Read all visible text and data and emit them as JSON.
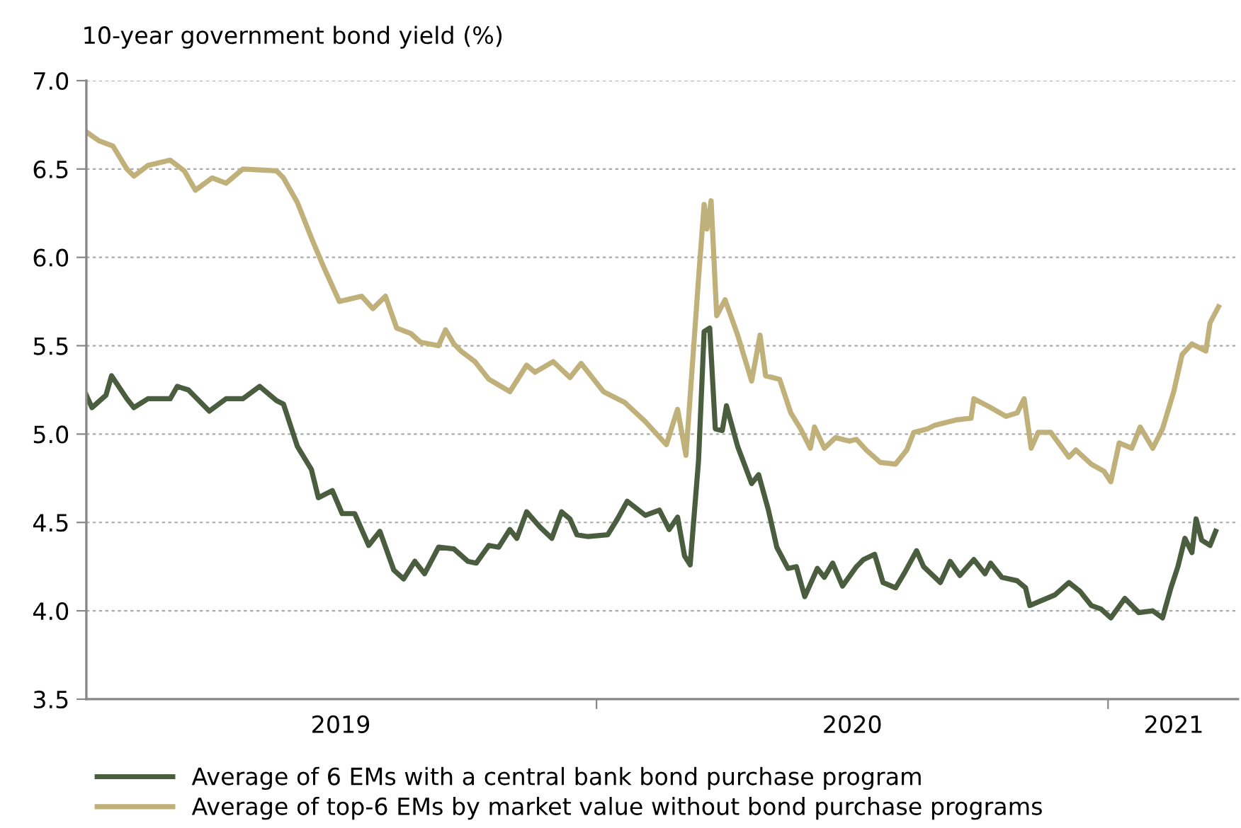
{
  "chart_data": {
    "type": "line",
    "ylabel": "10-year government bond yield (%)",
    "xlim": [
      "2019-01-01",
      "2021-04-04"
    ],
    "xticks": [
      {
        "value": "2019-07-02",
        "label": "2019"
      },
      {
        "value": "2020-01-01",
        "label": null
      },
      {
        "value": "2020-07-02",
        "label": "2020"
      },
      {
        "value": "2021-01-01",
        "label": null
      },
      {
        "value": "2021-02-17",
        "label": "2021"
      }
    ],
    "ylim": [
      3.5,
      7.0
    ],
    "yticks": [
      3.5,
      {
        "value": 4.0,
        "label": "4.0"
      },
      4.5,
      {
        "value": 5.0,
        "label": "5.0"
      },
      5.5,
      {
        "value": 6.0,
        "label": "6.0"
      },
      6.5,
      {
        "value": 7.0,
        "label": "7.0"
      }
    ],
    "grid": "y",
    "legend": "bottom",
    "line_style": "solid",
    "marker": "none",
    "series": [
      {
        "name": "Average of 6 EMs with a central bank bond purchase program",
        "color": "#4a5e3f",
        "x": [
          "2019-01-01",
          "2019-01-05",
          "2019-01-15",
          "2019-01-19",
          "2019-01-30",
          "2019-02-04",
          "2019-02-14",
          "2019-03-02",
          "2019-03-07",
          "2019-03-15",
          "2019-03-30",
          "2019-04-11",
          "2019-04-23",
          "2019-05-05",
          "2019-05-17",
          "2019-05-22",
          "2019-06-01",
          "2019-06-11",
          "2019-06-16",
          "2019-06-26",
          "2019-07-03",
          "2019-07-12",
          "2019-07-22",
          "2019-07-30",
          "2019-08-09",
          "2019-08-16",
          "2019-08-24",
          "2019-08-31",
          "2019-09-10",
          "2019-09-21",
          "2019-10-01",
          "2019-10-07",
          "2019-10-16",
          "2019-10-23",
          "2019-10-31",
          "2019-11-05",
          "2019-11-12",
          "2019-11-22",
          "2019-11-30",
          "2019-12-07",
          "2019-12-13",
          "2019-12-18",
          "2019-12-26",
          "2020-01-09",
          "2020-01-16",
          "2020-01-23",
          "2020-02-05",
          "2020-02-15",
          "2020-02-22",
          "2020-02-28",
          "2020-03-04",
          "2020-03-08",
          "2020-03-14",
          "2020-03-18",
          "2020-03-22",
          "2020-03-26",
          "2020-03-31",
          "2020-04-03",
          "2020-04-11",
          "2020-04-21",
          "2020-04-26",
          "2020-05-03",
          "2020-05-09",
          "2020-05-17",
          "2020-05-23",
          "2020-05-29",
          "2020-06-07",
          "2020-06-12",
          "2020-06-18",
          "2020-06-25",
          "2020-07-05",
          "2020-07-10",
          "2020-07-18",
          "2020-07-24",
          "2020-08-02",
          "2020-08-08",
          "2020-08-17",
          "2020-08-22",
          "2020-09-03",
          "2020-09-10",
          "2020-09-17",
          "2020-09-27",
          "2020-10-05",
          "2020-10-09",
          "2020-10-17",
          "2020-10-28",
          "2020-11-03",
          "2020-11-06",
          "2020-11-12",
          "2020-11-24",
          "2020-12-04",
          "2020-12-12",
          "2020-12-20",
          "2020-12-27",
          "2021-01-03",
          "2021-01-13",
          "2021-01-23",
          "2021-02-02",
          "2021-02-09",
          "2021-02-15",
          "2021-02-20",
          "2021-02-25",
          "2021-03-02",
          "2021-03-05",
          "2021-03-09",
          "2021-03-15",
          "2021-03-19"
        ],
        "values": [
          5.22,
          5.15,
          5.22,
          5.33,
          5.2,
          5.15,
          5.2,
          5.2,
          5.27,
          5.25,
          5.13,
          5.2,
          5.2,
          5.27,
          5.19,
          5.17,
          4.93,
          4.8,
          4.64,
          4.68,
          4.55,
          4.55,
          4.37,
          4.45,
          4.23,
          4.18,
          4.28,
          4.21,
          4.36,
          4.35,
          4.28,
          4.27,
          4.37,
          4.36,
          4.46,
          4.41,
          4.56,
          4.47,
          4.41,
          4.56,
          4.52,
          4.43,
          4.42,
          4.43,
          4.52,
          4.62,
          4.54,
          4.57,
          4.46,
          4.53,
          4.31,
          4.26,
          4.85,
          5.58,
          5.6,
          5.03,
          5.02,
          5.16,
          4.93,
          4.72,
          4.77,
          4.57,
          4.36,
          4.24,
          4.25,
          4.08,
          4.24,
          4.19,
          4.27,
          4.14,
          4.25,
          4.29,
          4.32,
          4.16,
          4.13,
          4.21,
          4.34,
          4.25,
          4.16,
          4.28,
          4.2,
          4.29,
          4.21,
          4.27,
          4.19,
          4.17,
          4.13,
          4.03,
          4.05,
          4.09,
          4.16,
          4.11,
          4.03,
          4.01,
          3.96,
          4.07,
          3.99,
          4.0,
          3.96,
          4.13,
          4.25,
          4.41,
          4.33,
          4.52,
          4.4,
          4.37,
          4.45
        ]
      },
      {
        "name": "Average of top-6 EMs by market value without bond purchase programs",
        "color": "#c0b07a",
        "x": [
          "2019-01-01",
          "2019-01-10",
          "2019-01-20",
          "2019-01-30",
          "2019-02-04",
          "2019-02-14",
          "2019-03-02",
          "2019-03-12",
          "2019-03-20",
          "2019-04-01",
          "2019-04-11",
          "2019-04-23",
          "2019-05-17",
          "2019-05-22",
          "2019-06-01",
          "2019-06-11",
          "2019-06-19",
          "2019-07-01",
          "2019-07-17",
          "2019-07-25",
          "2019-08-03",
          "2019-08-11",
          "2019-08-21",
          "2019-08-28",
          "2019-09-10",
          "2019-09-15",
          "2019-09-21",
          "2019-09-26",
          "2019-10-06",
          "2019-10-16",
          "2019-10-31",
          "2019-11-12",
          "2019-11-18",
          "2019-12-01",
          "2019-12-13",
          "2019-12-21",
          "2020-01-06",
          "2020-01-21",
          "2020-02-05",
          "2020-02-20",
          "2020-02-28",
          "2020-03-05",
          "2020-03-14",
          "2020-03-18",
          "2020-03-20",
          "2020-03-23",
          "2020-03-27",
          "2020-04-02",
          "2020-04-11",
          "2020-04-21",
          "2020-04-27",
          "2020-05-01",
          "2020-05-11",
          "2020-05-19",
          "2020-05-26",
          "2020-06-02",
          "2020-06-05",
          "2020-06-12",
          "2020-06-20",
          "2020-06-30",
          "2020-07-05",
          "2020-07-12",
          "2020-07-22",
          "2020-08-02",
          "2020-08-10",
          "2020-08-15",
          "2020-08-25",
          "2020-08-30",
          "2020-09-14",
          "2020-09-25",
          "2020-09-27",
          "2020-10-09",
          "2020-10-20",
          "2020-10-28",
          "2020-11-02",
          "2020-11-07",
          "2020-11-12",
          "2020-11-21",
          "2020-12-04",
          "2020-12-09",
          "2020-12-20",
          "2020-12-29",
          "2021-01-03",
          "2021-01-09",
          "2021-01-18",
          "2021-01-24",
          "2021-02-02",
          "2021-02-09",
          "2021-02-17",
          "2021-02-23",
          "2021-03-02",
          "2021-03-07",
          "2021-03-12",
          "2021-03-15",
          "2021-03-21"
        ],
        "values": [
          6.71,
          6.66,
          6.63,
          6.5,
          6.46,
          6.52,
          6.55,
          6.49,
          6.38,
          6.45,
          6.42,
          6.5,
          6.49,
          6.45,
          6.31,
          6.11,
          5.96,
          5.75,
          5.78,
          5.71,
          5.78,
          5.6,
          5.57,
          5.52,
          5.5,
          5.59,
          5.51,
          5.47,
          5.41,
          5.31,
          5.24,
          5.39,
          5.35,
          5.41,
          5.32,
          5.4,
          5.24,
          5.18,
          5.07,
          4.94,
          5.14,
          4.88,
          5.88,
          6.3,
          6.16,
          6.32,
          5.67,
          5.76,
          5.56,
          5.3,
          5.56,
          5.33,
          5.31,
          5.12,
          5.03,
          4.92,
          5.04,
          4.92,
          4.98,
          4.96,
          4.97,
          4.91,
          4.84,
          4.83,
          4.91,
          5.01,
          5.03,
          5.05,
          5.08,
          5.09,
          5.2,
          5.15,
          5.1,
          5.12,
          5.2,
          4.92,
          5.01,
          5.01,
          4.87,
          4.91,
          4.83,
          4.79,
          4.73,
          4.95,
          4.92,
          5.04,
          4.92,
          5.03,
          5.24,
          5.45,
          5.51,
          5.49,
          5.47,
          5.63,
          5.72
        ]
      }
    ]
  }
}
